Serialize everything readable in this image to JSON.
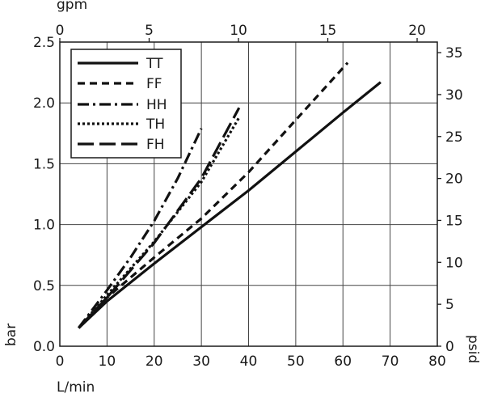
{
  "chart_data": {
    "type": "line",
    "title": "",
    "xlabel": "L/min",
    "ylabel": "bar",
    "x2label": "gpm",
    "y2label": "psid",
    "xlim": [
      0,
      80
    ],
    "ylim": [
      0,
      2.5
    ],
    "x2lim": [
      0,
      21.13
    ],
    "y2lim": [
      0,
      36.26
    ],
    "xticks": [
      "0",
      "10",
      "20",
      "30",
      "40",
      "50",
      "60",
      "70",
      "80"
    ],
    "yticks": [
      "0.0",
      "0.5",
      "1.0",
      "1.5",
      "2.0",
      "2.5"
    ],
    "x2ticks": [
      "0",
      "5",
      "10",
      "15",
      "20"
    ],
    "y2ticks": [
      "0",
      "5",
      "10",
      "15",
      "20",
      "25",
      "30",
      "35"
    ],
    "grid": true,
    "legend": "top-left",
    "series": [
      {
        "name": "TT",
        "dash": "solid",
        "x": [
          4,
          10,
          20,
          30,
          40,
          50,
          60,
          68
        ],
        "y": [
          0.15,
          0.37,
          0.68,
          0.98,
          1.28,
          1.6,
          1.92,
          2.17
        ]
      },
      {
        "name": "FF",
        "dash": "dash",
        "x": [
          4,
          10,
          20,
          30,
          40,
          50,
          61
        ],
        "y": [
          0.15,
          0.4,
          0.73,
          1.05,
          1.43,
          1.86,
          2.33
        ]
      },
      {
        "name": "HH",
        "dash": "dashdot",
        "x": [
          4,
          10,
          15,
          20,
          25,
          30
        ],
        "y": [
          0.15,
          0.46,
          0.73,
          1.03,
          1.38,
          1.79
        ]
      },
      {
        "name": "TH",
        "dash": "dot",
        "x": [
          4,
          10,
          20,
          30,
          38
        ],
        "y": [
          0.15,
          0.42,
          0.86,
          1.35,
          1.88
        ]
      },
      {
        "name": "FH",
        "dash": "longdash",
        "x": [
          4,
          10,
          20,
          30,
          38
        ],
        "y": [
          0.15,
          0.4,
          0.85,
          1.38,
          1.96
        ]
      }
    ]
  }
}
